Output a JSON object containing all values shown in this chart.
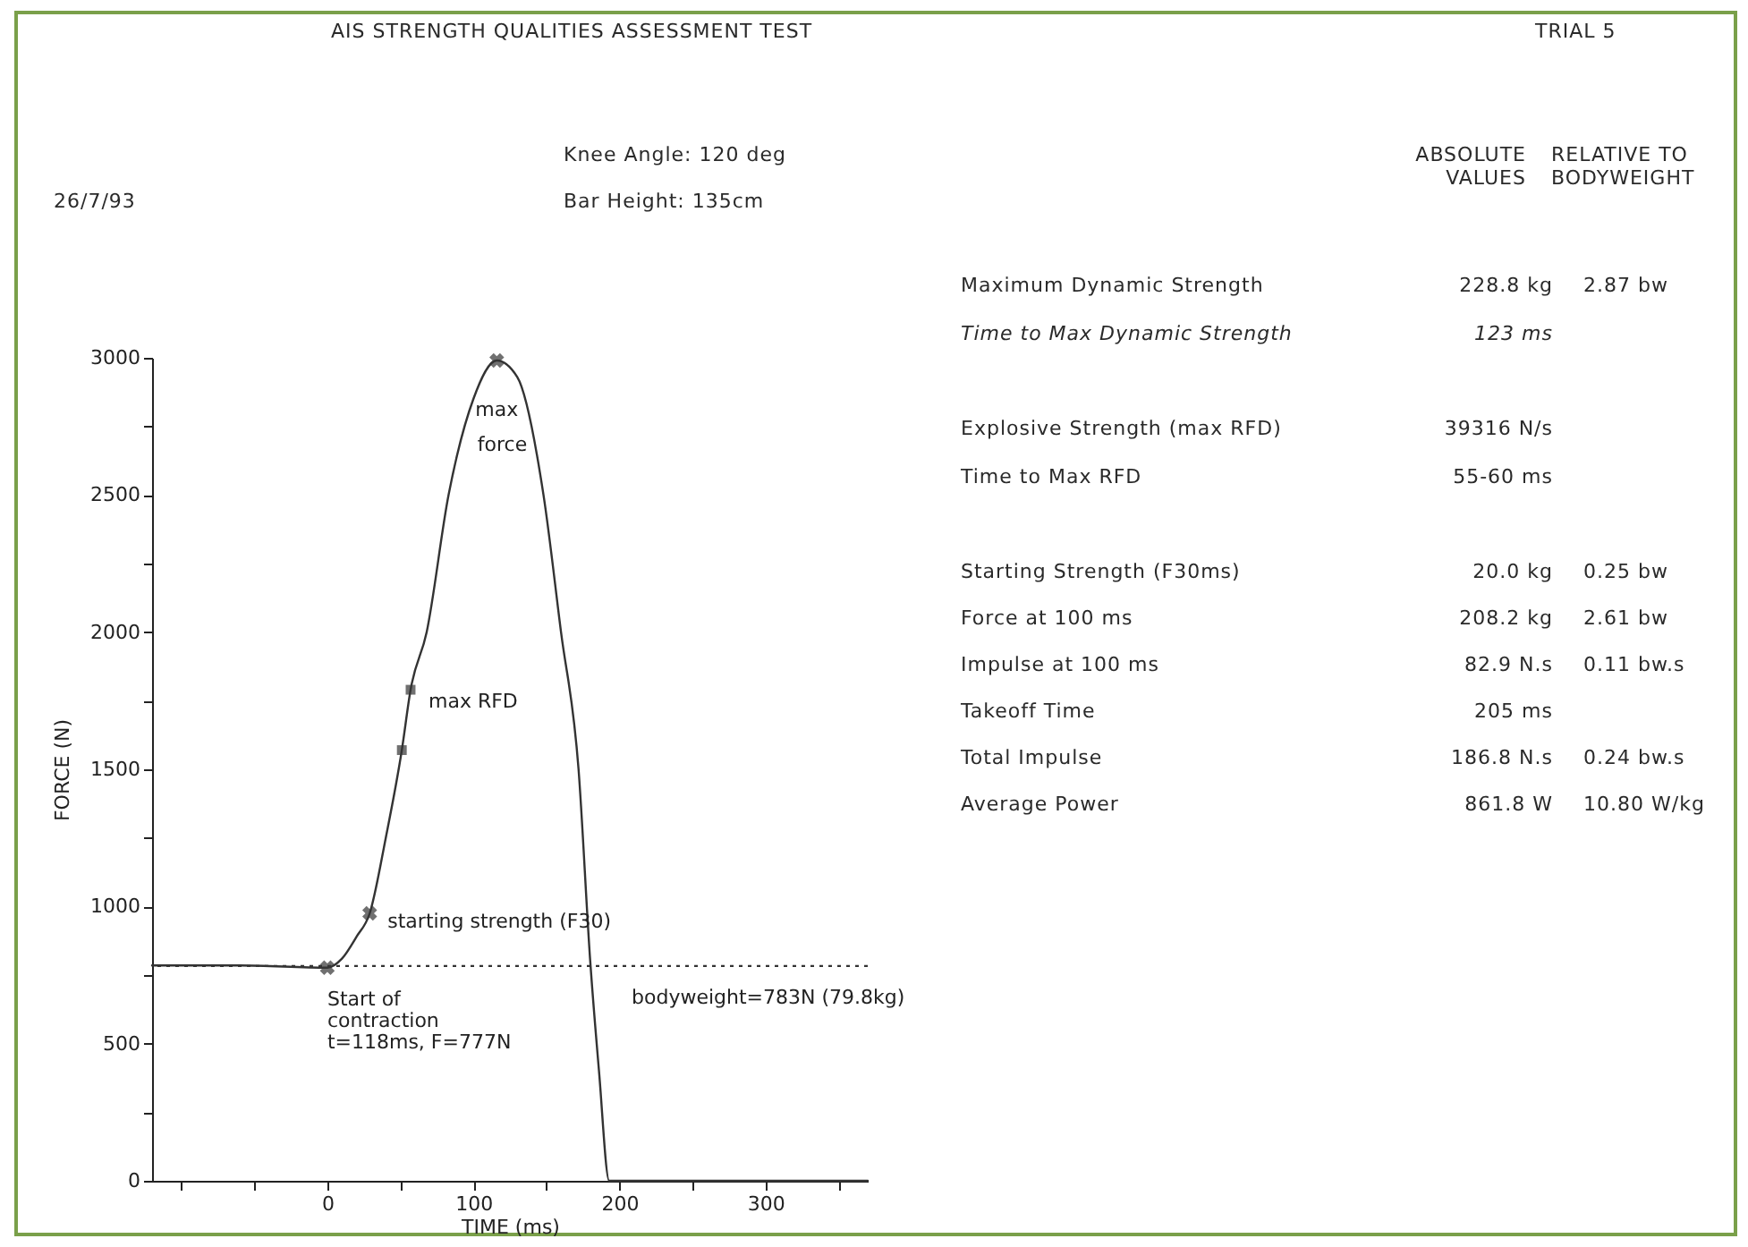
{
  "chart_data": {
    "type": "line",
    "title": "AIS STRENGTH QUALITIES ASSESSMENT TEST",
    "xlabel": "TIME (ms)",
    "ylabel": "FORCE (N)",
    "xlim": [
      -120,
      370
    ],
    "ylim": [
      0,
      3000
    ],
    "xticks": [
      {
        "value": -100,
        "label": null
      },
      {
        "value": -50,
        "label": null
      },
      0,
      {
        "value": 50,
        "label": null
      },
      100,
      {
        "value": 150,
        "label": null
      },
      200,
      {
        "value": 250,
        "label": null
      },
      300,
      {
        "value": 350,
        "label": null
      }
    ],
    "yticks": [
      0,
      {
        "value": 250,
        "label": null
      },
      500,
      {
        "value": 750,
        "label": null
      },
      1000,
      {
        "value": 1250,
        "label": null
      },
      1500,
      {
        "value": 1750,
        "label": null
      },
      2000,
      {
        "value": 2250,
        "label": null
      },
      2500,
      {
        "value": 2750,
        "label": null
      },
      3000
    ],
    "grid": false,
    "line_style": "solid",
    "series": [
      {
        "color": "#333333",
        "x": [
          -120,
          -60,
          0,
          10,
          20,
          29,
          40,
          51,
          57,
          68,
          83,
          100,
          116,
          130,
          148,
          160,
          172,
          180,
          186,
          193,
          250,
          300,
          340,
          370
        ],
        "values": [
          785,
          785,
          777,
          810,
          890,
          975,
          1250,
          1570,
          1790,
          2000,
          2500,
          2850,
          2990,
          2930,
          2500,
          2000,
          1500,
          800,
          400,
          0,
          0,
          0,
          0,
          0
        ]
      },
      {
        "type": "scatter",
        "marker": "cross",
        "color": "#333333",
        "x": [
          0,
          29,
          116
        ],
        "values": [
          777,
          975,
          2990
        ]
      },
      {
        "type": "scatter",
        "marker": "square",
        "color": "#333333",
        "x": [
          51,
          57
        ],
        "values": [
          1570,
          1790
        ]
      }
    ],
    "ref_lines": [
      {
        "axis": "y",
        "value": 783,
        "label": "bodyweight=783N (79.8kg)",
        "line_style": "dotted",
        "color": "#333333"
      }
    ],
    "annotations": [
      "TRIAL 5",
      "Knee Angle: 120 deg",
      "26/7/93",
      "Bar Height: 135cm",
      "ABSOLUTE\nVALUES",
      "RELATIVE TO\nBODYWEIGHT",
      "Maximum Dynamic Strength",
      "228.8 kg",
      "2.87 bw",
      "Time to Max Dynamic Strength",
      "123 ms",
      "Explosive Strength (max RFD)",
      "39316 N/s",
      "Time to Max RFD",
      "55-60 ms",
      "Starting Strength (F30ms)",
      "20.0 kg",
      "0.25 bw",
      "Force at 100 ms",
      "208.2 kg",
      "2.61 bw",
      "Impulse at 100 ms",
      "82.9 N.s",
      "0.11 bw.s",
      "Takeoff Time",
      "205 ms",
      "Total Impulse",
      "186.8 N.s",
      "0.24 bw.s",
      "Average Power",
      "861.8 W",
      "10.80 W/kg",
      {
        "text": "max",
        "x": 116,
        "y": 2990
      },
      {
        "text": "force",
        "x": 138,
        "y": 2680
      },
      {
        "text": "max RFD",
        "x": 57,
        "y": 1790
      },
      {
        "text": "starting strength (F30)",
        "x": 29,
        "y": 975
      },
      {
        "text": "Start of\ncontraction\nt=118ms, F=777N",
        "x": 0,
        "y": 777
      }
    ]
  }
}
